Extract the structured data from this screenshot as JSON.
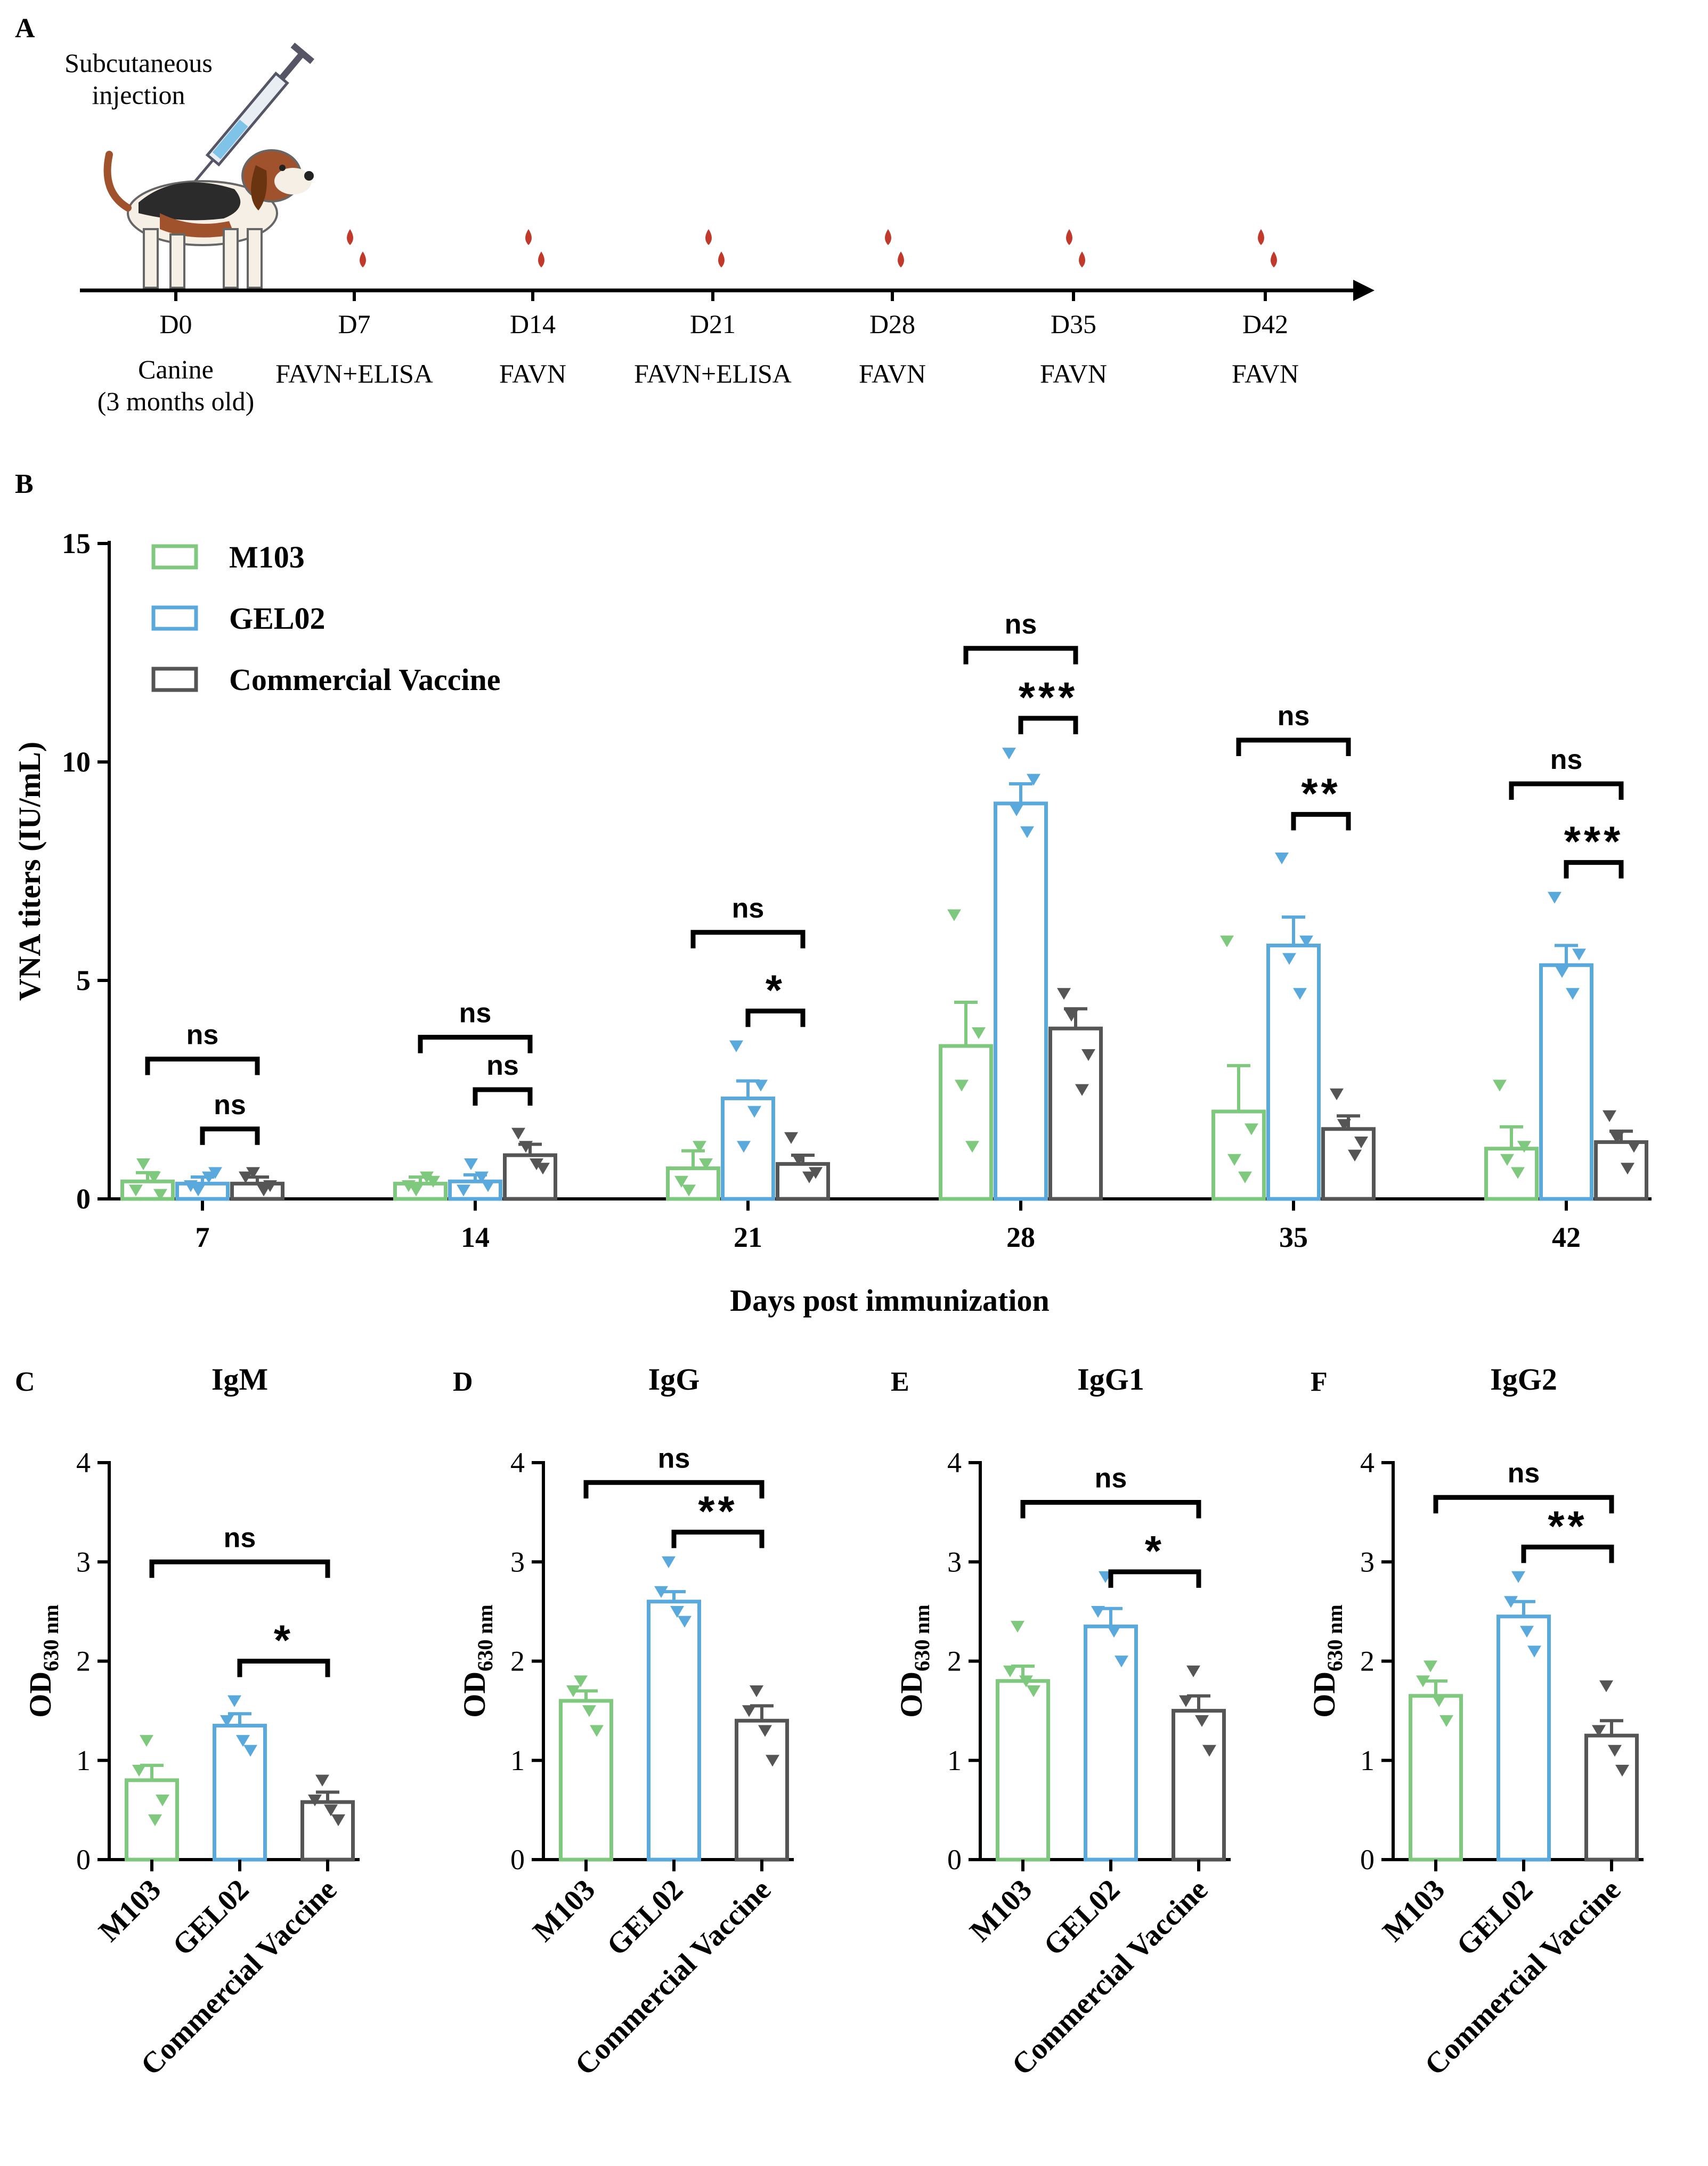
{
  "panel_labels": {
    "a": "A",
    "b": "B",
    "c": "C",
    "d": "D",
    "e": "E",
    "f": "F"
  },
  "colors": {
    "m103": "#7fc97f",
    "gel02": "#5aa9dd",
    "commercial": "#555555",
    "blood": "#c0392b",
    "axis": "#000000"
  },
  "timeline": {
    "injection_label_line1": "Subcutaneous",
    "injection_label_line2": "injection",
    "animal_line1": "Canine",
    "animal_line2": "(3 months old)",
    "points": [
      {
        "day": "D0",
        "assay": ""
      },
      {
        "day": "D7",
        "assay": "FAVN+ELISA"
      },
      {
        "day": "D14",
        "assay": "FAVN"
      },
      {
        "day": "D21",
        "assay": "FAVN+ELISA"
      },
      {
        "day": "D28",
        "assay": "FAVN"
      },
      {
        "day": "D35",
        "assay": "FAVN"
      },
      {
        "day": "D42",
        "assay": "FAVN"
      }
    ]
  },
  "chart_data": [
    {
      "id": "B",
      "type": "bar",
      "title": "",
      "xlabel": "Days post immunization",
      "ylabel": "VNA titers (IU/mL)",
      "ylim": [
        0,
        15
      ],
      "yticks": [
        "0",
        "5",
        "10",
        "15"
      ],
      "categories": [
        "7",
        "14",
        "21",
        "28",
        "35",
        "42"
      ],
      "legend": [
        "M103",
        "GEL02",
        "Commercial Vaccine"
      ],
      "legend_position": "top-left",
      "series": [
        {
          "name": "M103",
          "values": [
            0.4,
            0.35,
            0.7,
            3.5,
            2.0,
            1.15
          ],
          "sem": [
            0.2,
            0.15,
            0.4,
            1.0,
            1.05,
            0.5
          ],
          "points": [
            [
              0.2,
              0.5,
              0.8,
              0.1
            ],
            [
              0.3,
              0.5,
              0.2,
              0.4
            ],
            [
              0.4,
              1.2,
              0.2,
              0.8
            ],
            [
              6.5,
              1.2,
              2.6,
              3.8
            ],
            [
              5.9,
              0.5,
              0.9,
              1.6
            ],
            [
              2.6,
              0.6,
              0.9,
              1.2
            ]
          ]
        },
        {
          "name": "GEL02",
          "values": [
            0.35,
            0.4,
            2.3,
            9.05,
            5.8,
            5.35
          ],
          "sem": [
            0.15,
            0.15,
            0.4,
            0.45,
            0.65,
            0.45
          ],
          "points": [
            [
              0.3,
              0.5,
              0.2,
              0.6
            ],
            [
              0.2,
              0.5,
              0.8,
              0.3
            ],
            [
              3.5,
              2.0,
              1.2,
              2.6
            ],
            [
              10.2,
              8.4,
              8.9,
              9.6
            ],
            [
              7.8,
              4.7,
              5.5,
              5.9
            ],
            [
              6.9,
              4.7,
              5.2,
              5.6
            ]
          ]
        },
        {
          "name": "Commercial Vaccine",
          "values": [
            0.35,
            1.0,
            0.8,
            3.9,
            1.6,
            1.3
          ],
          "sem": [
            0.15,
            0.25,
            0.2,
            0.45,
            0.3,
            0.25
          ],
          "points": [
            [
              0.5,
              0.2,
              0.6,
              0.3
            ],
            [
              1.5,
              0.8,
              1.2,
              0.7
            ],
            [
              1.4,
              0.5,
              0.9,
              0.6
            ],
            [
              4.7,
              2.5,
              4.2,
              3.3
            ],
            [
              2.4,
              1.0,
              1.7,
              1.3
            ],
            [
              1.9,
              0.7,
              1.4,
              1.2
            ]
          ]
        }
      ],
      "annotations": [
        {
          "cat": 0,
          "from": 0,
          "to": 2,
          "label": "ns",
          "y": 3.2
        },
        {
          "cat": 0,
          "from": 1,
          "to": 2,
          "label": "ns",
          "y": 1.6
        },
        {
          "cat": 1,
          "from": 0,
          "to": 2,
          "label": "ns",
          "y": 3.7
        },
        {
          "cat": 1,
          "from": 1,
          "to": 2,
          "label": "ns",
          "y": 2.5
        },
        {
          "cat": 2,
          "from": 0,
          "to": 2,
          "label": "ns",
          "y": 6.1
        },
        {
          "cat": 2,
          "from": 1,
          "to": 2,
          "label": "*",
          "y": 4.3
        },
        {
          "cat": 3,
          "from": 0,
          "to": 2,
          "label": "ns",
          "y": 12.6
        },
        {
          "cat": 3,
          "from": 1,
          "to": 2,
          "label": "***",
          "y": 11.0
        },
        {
          "cat": 4,
          "from": 0,
          "to": 2,
          "label": "ns",
          "y": 10.5
        },
        {
          "cat": 4,
          "from": 1,
          "to": 2,
          "label": "**",
          "y": 8.8
        },
        {
          "cat": 5,
          "from": 0,
          "to": 2,
          "label": "ns",
          "y": 9.5
        },
        {
          "cat": 5,
          "from": 1,
          "to": 2,
          "label": "***",
          "y": 7.7
        }
      ]
    },
    {
      "id": "C",
      "type": "bar",
      "title": "IgM",
      "ylabel_main": "OD",
      "ylabel_sub": "630 nm",
      "ylim": [
        0,
        4
      ],
      "yticks": [
        "0",
        "1",
        "2",
        "3",
        "4"
      ],
      "categories": [
        "M103",
        "GEL02",
        "Commercial Vaccine"
      ],
      "values": [
        0.8,
        1.35,
        0.58
      ],
      "sem": [
        0.15,
        0.12,
        0.1
      ],
      "points": [
        [
          1.2,
          0.6,
          0.9,
          0.4
        ],
        [
          1.6,
          1.1,
          1.4,
          1.2
        ],
        [
          0.8,
          0.4,
          0.6,
          0.5
        ]
      ],
      "annotations": [
        {
          "from": 0,
          "to": 2,
          "label": "ns",
          "y": 3.0
        },
        {
          "from": 1,
          "to": 2,
          "label": "*",
          "y": 2.0
        }
      ]
    },
    {
      "id": "D",
      "type": "bar",
      "title": "IgG",
      "ylabel_main": "OD",
      "ylabel_sub": "630 nm",
      "ylim": [
        0,
        4
      ],
      "yticks": [
        "0",
        "1",
        "2",
        "3",
        "4"
      ],
      "categories": [
        "M103",
        "GEL02",
        "Commercial Vaccine"
      ],
      "values": [
        1.6,
        2.6,
        1.4
      ],
      "sem": [
        0.1,
        0.1,
        0.15
      ],
      "points": [
        [
          1.8,
          1.3,
          1.7,
          1.5
        ],
        [
          3.0,
          2.4,
          2.7,
          2.5
        ],
        [
          1.7,
          1.0,
          1.5,
          1.3
        ]
      ],
      "annotations": [
        {
          "from": 0,
          "to": 2,
          "label": "ns",
          "y": 3.8
        },
        {
          "from": 1,
          "to": 2,
          "label": "**",
          "y": 3.3
        }
      ]
    },
    {
      "id": "E",
      "type": "bar",
      "title": "IgG1",
      "ylabel_main": "OD",
      "ylabel_sub": "630 nm",
      "ylim": [
        0,
        4
      ],
      "yticks": [
        "0",
        "1",
        "2",
        "3",
        "4"
      ],
      "categories": [
        "M103",
        "GEL02",
        "Commercial Vaccine"
      ],
      "values": [
        1.8,
        2.35,
        1.5
      ],
      "sem": [
        0.15,
        0.18,
        0.15
      ],
      "points": [
        [
          2.35,
          1.7,
          1.9,
          1.8
        ],
        [
          2.85,
          2.0,
          2.5,
          2.3
        ],
        [
          1.9,
          1.1,
          1.6,
          1.4
        ]
      ],
      "annotations": [
        {
          "from": 0,
          "to": 2,
          "label": "ns",
          "y": 3.6
        },
        {
          "from": 1,
          "to": 2,
          "label": "*",
          "y": 2.9
        }
      ]
    },
    {
      "id": "F",
      "type": "bar",
      "title": "IgG2",
      "ylabel_main": "OD",
      "ylabel_sub": "630 nm",
      "ylim": [
        0,
        4
      ],
      "yticks": [
        "0",
        "1",
        "2",
        "3",
        "4"
      ],
      "categories": [
        "M103",
        "GEL02",
        "Commercial Vaccine"
      ],
      "values": [
        1.65,
        2.45,
        1.25
      ],
      "sem": [
        0.15,
        0.15,
        0.15
      ],
      "points": [
        [
          1.95,
          1.4,
          1.8,
          1.6
        ],
        [
          2.85,
          2.1,
          2.6,
          2.3
        ],
        [
          1.75,
          0.9,
          1.3,
          1.1
        ]
      ],
      "annotations": [
        {
          "from": 0,
          "to": 2,
          "label": "ns",
          "y": 3.65
        },
        {
          "from": 1,
          "to": 2,
          "label": "**",
          "y": 3.15
        }
      ]
    }
  ]
}
